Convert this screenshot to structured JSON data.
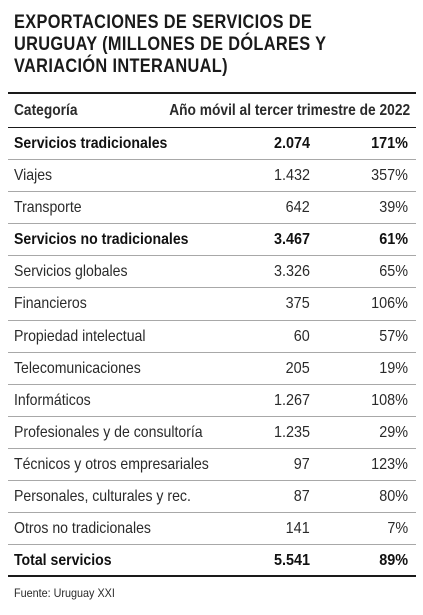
{
  "title": "EXPORTACIONES DE SERVICIOS DE\nURUGUAY (MILLONES DE DÓLARES Y\nVARIACIÓN INTERANUAL)",
  "columns": {
    "category": "Categoría",
    "period": "Año móvil al tercer trimestre de 2022"
  },
  "rows": [
    {
      "name": "Servicios tradicionales",
      "value": "2.074",
      "pct": "171%",
      "bold": true
    },
    {
      "name": "Viajes",
      "value": "1.432",
      "pct": "357%",
      "bold": false
    },
    {
      "name": "Transporte",
      "value": "642",
      "pct": "39%",
      "bold": false
    },
    {
      "name": "Servicios no tradicionales",
      "value": "3.467",
      "pct": "61%",
      "bold": true
    },
    {
      "name": "Servicios globales",
      "value": "3.326",
      "pct": "65%",
      "bold": false
    },
    {
      "name": "Financieros",
      "value": "375",
      "pct": "106%",
      "bold": false
    },
    {
      "name": "Propiedad intelectual",
      "value": "60",
      "pct": "57%",
      "bold": false
    },
    {
      "name": "Telecomunicaciones",
      "value": "205",
      "pct": "19%",
      "bold": false
    },
    {
      "name": "Informáticos",
      "value": "1.267",
      "pct": "108%",
      "bold": false
    },
    {
      "name": "Profesionales y de consultoría",
      "value": "1.235",
      "pct": "29%",
      "bold": false
    },
    {
      "name": "Técnicos y otros empresariales",
      "value": "97",
      "pct": "123%",
      "bold": false
    },
    {
      "name": "Personales, culturales y rec.",
      "value": "87",
      "pct": "80%",
      "bold": false
    },
    {
      "name": "Otros no tradicionales",
      "value": "141",
      "pct": "7%",
      "bold": false
    },
    {
      "name": "Total servicios",
      "value": "5.541",
      "pct": "89%",
      "bold": true
    }
  ],
  "source": "Fuente: Uruguay XXI"
}
